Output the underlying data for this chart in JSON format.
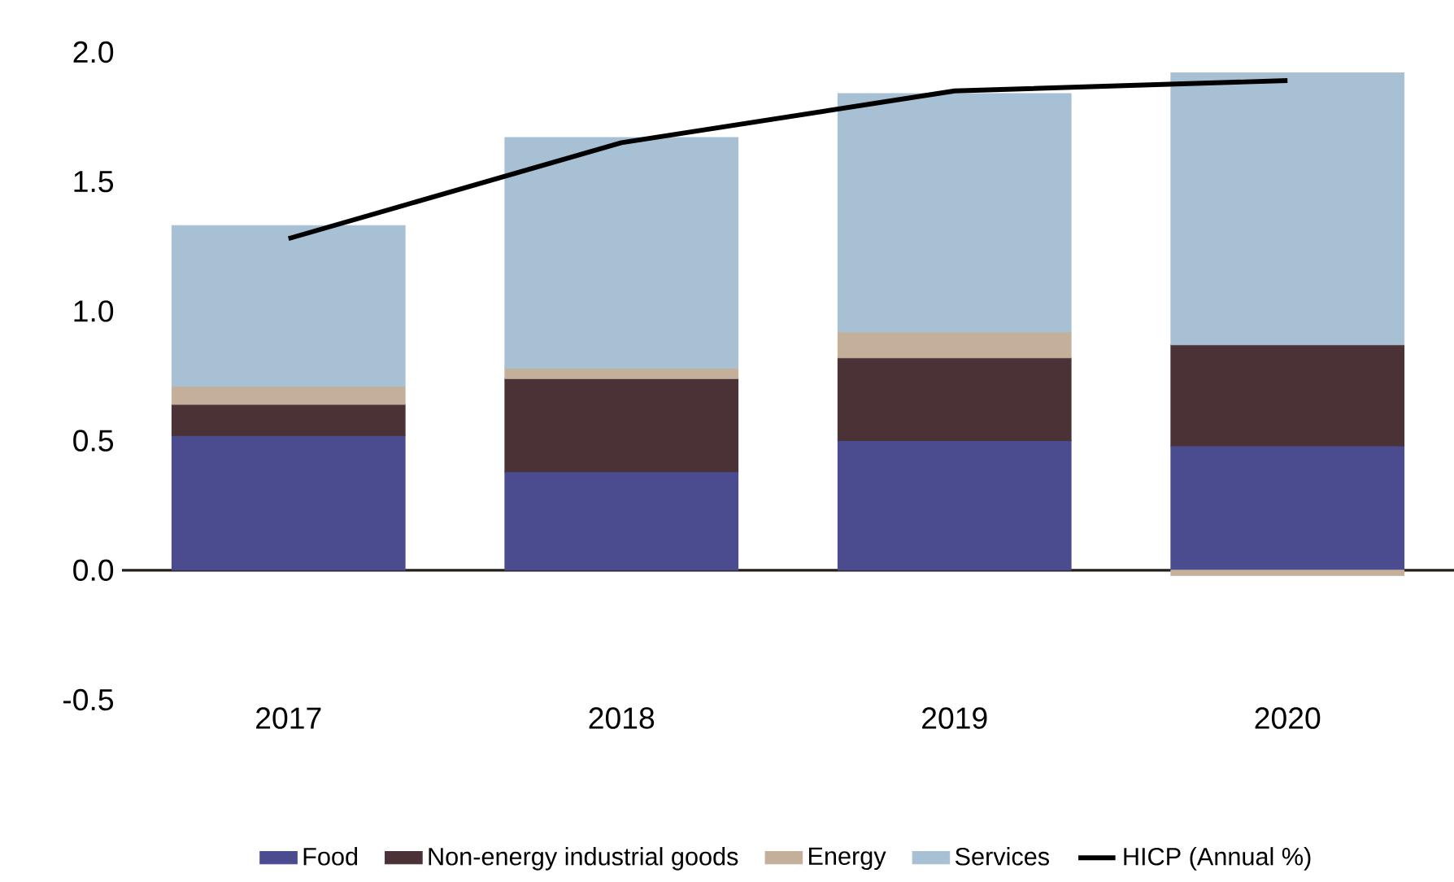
{
  "chart_data": {
    "type": "bar",
    "stacked": true,
    "categories": [
      "2017",
      "2018",
      "2019",
      "2020"
    ],
    "series": [
      {
        "name": "Food",
        "color": "#4b4b8f",
        "values": [
          0.52,
          0.38,
          0.5,
          0.48
        ]
      },
      {
        "name": "Non-energy industrial goods",
        "color": "#4a3236",
        "values": [
          0.12,
          0.36,
          0.32,
          0.39
        ]
      },
      {
        "name": "Energy",
        "color": "#c4b09a",
        "values": [
          0.07,
          0.04,
          0.1,
          -0.02
        ]
      },
      {
        "name": "Services",
        "color": "#a8c0d4",
        "values": [
          0.62,
          0.89,
          0.92,
          1.05
        ]
      },
      {
        "name": "HICP (Annual %)",
        "type": "line",
        "color": "#000000",
        "values": [
          1.28,
          1.65,
          1.85,
          1.89
        ]
      }
    ],
    "ylim": [
      -0.5,
      2.0
    ],
    "yticks": [
      -0.5,
      {
        "value": 0,
        "label": "0.0"
      },
      0.5,
      {
        "value": 1,
        "label": "1.0"
      },
      1.5,
      {
        "value": 2,
        "label": "2.0"
      }
    ],
    "legend": "bottom"
  }
}
